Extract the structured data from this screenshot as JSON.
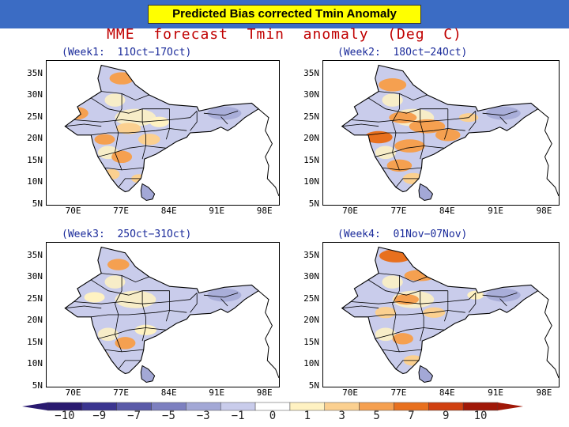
{
  "header": {
    "title": "Predicted Bias corrected  Tmin Anomaly"
  },
  "main_title": "MME  forecast  Tmin  anomaly  (Deg  C)",
  "panels": [
    {
      "title": "(Week1:  11Oct−17Oct)"
    },
    {
      "title": "(Week2:  18Oct−24Oct)"
    },
    {
      "title": "(Week3:  25Oct−31Oct)"
    },
    {
      "title": "(Week4:  01Nov−07Nov)"
    }
  ],
  "axes": {
    "lat_labels": [
      "35N",
      "30N",
      "25N",
      "20N",
      "15N",
      "10N",
      "5N"
    ],
    "lon_labels": [
      "70E",
      "77E",
      "84E",
      "91E",
      "98E"
    ]
  },
  "colorbar": {
    "labels": [
      "−10",
      "−9",
      "−7",
      "−5",
      "−3",
      "−1",
      "0",
      "1",
      "3",
      "5",
      "7",
      "9",
      "10"
    ],
    "colors": [
      "#2a1a70",
      "#3b3590",
      "#5a5aa8",
      "#7d80c0",
      "#a3a8d6",
      "#c9cceb",
      "#ffffff",
      "#fff2c2",
      "#fbd090",
      "#f5a050",
      "#e8701e",
      "#d04010",
      "#a01808"
    ]
  }
}
